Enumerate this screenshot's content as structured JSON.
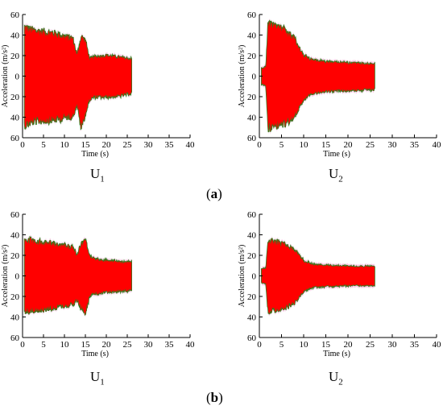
{
  "charts": [
    {
      "id": "a-u1",
      "type": "area",
      "xlabel": "Time (s)",
      "ylabel": "Acceleration (m/s²)",
      "xlim": [
        0,
        40
      ],
      "ylim": [
        -60,
        60
      ],
      "xticks": [
        0,
        5,
        10,
        15,
        20,
        25,
        30,
        35,
        40
      ],
      "yticks": [
        60,
        40,
        20,
        0,
        20,
        40,
        60
      ],
      "caption_main": "U",
      "caption_sub": "1",
      "fill_color": "#ff0000",
      "edge_color": "#2e7d1e",
      "envelope": {
        "t": [
          0.5,
          1.5,
          3,
          5,
          8,
          10,
          12,
          13,
          14,
          15,
          16,
          17,
          20,
          23,
          26
        ],
        "upper": [
          52,
          50,
          48,
          47,
          45,
          42,
          40,
          22,
          42,
          38,
          18,
          20,
          22,
          20,
          18
        ],
        "lower": [
          -52,
          -50,
          -48,
          -47,
          -46,
          -44,
          -42,
          -30,
          -55,
          -40,
          -25,
          -22,
          -22,
          -21,
          -18
        ]
      }
    },
    {
      "id": "a-u2",
      "type": "area",
      "xlabel": "Time (s)",
      "ylabel": "Acceleration (m/s²)",
      "xlim": [
        0,
        40
      ],
      "ylim": [
        -60,
        60
      ],
      "xticks": [
        0,
        5,
        10,
        15,
        20,
        25,
        30,
        35,
        40
      ],
      "yticks": [
        60,
        40,
        20,
        0,
        20,
        40,
        60
      ],
      "caption_main": "U",
      "caption_sub": "2",
      "fill_color": "#ff0000",
      "edge_color": "#2e7d1e",
      "envelope": {
        "t": [
          0.5,
          1.5,
          2,
          4,
          6,
          8,
          9,
          10,
          12,
          15,
          20,
          26
        ],
        "upper": [
          8,
          10,
          55,
          52,
          48,
          40,
          30,
          22,
          17,
          15,
          14,
          13
        ],
        "lower": [
          -8,
          -10,
          -55,
          -52,
          -50,
          -42,
          -32,
          -25,
          -18,
          -16,
          -15,
          -14
        ]
      }
    },
    {
      "id": "b-u1",
      "type": "area",
      "xlabel": "Time (s)",
      "ylabel": "Acceleration (m/s²)",
      "xlim": [
        0,
        40
      ],
      "ylim": [
        -60,
        60
      ],
      "xticks": [
        0,
        5,
        10,
        15,
        20,
        25,
        30,
        35,
        40
      ],
      "yticks": [
        60,
        40,
        20,
        0,
        20,
        40,
        60
      ],
      "caption_main": "U",
      "caption_sub": "1",
      "fill_color": "#ff0000",
      "edge_color": "#2e7d1e",
      "envelope": {
        "t": [
          0.5,
          1.5,
          4,
          8,
          12,
          13,
          14,
          15,
          16,
          17,
          20,
          23,
          26
        ],
        "upper": [
          38,
          38,
          36,
          34,
          30,
          22,
          34,
          38,
          20,
          18,
          16,
          15,
          14
        ],
        "lower": [
          -38,
          -38,
          -36,
          -34,
          -30,
          -26,
          -34,
          -38,
          -22,
          -19,
          -17,
          -16,
          -15
        ]
      }
    },
    {
      "id": "b-u2",
      "type": "area",
      "xlabel": "Time (s)",
      "ylabel": "Acceleration (m/s²)",
      "xlim": [
        0,
        40
      ],
      "ylim": [
        -60,
        60
      ],
      "xticks": [
        0,
        5,
        10,
        15,
        20,
        25,
        30,
        35,
        40
      ],
      "yticks": [
        60,
        40,
        20,
        0,
        20,
        40,
        60
      ],
      "caption_main": "U",
      "caption_sub": "2",
      "fill_color": "#ff0000",
      "edge_color": "#2e7d1e",
      "envelope": {
        "t": [
          0.5,
          1.5,
          2,
          4,
          6,
          8,
          9,
          10,
          12,
          15,
          20,
          26
        ],
        "upper": [
          7,
          8,
          38,
          36,
          33,
          28,
          22,
          16,
          12,
          11,
          10,
          10
        ],
        "lower": [
          -7,
          -8,
          -38,
          -36,
          -33,
          -28,
          -22,
          -16,
          -12,
          -11,
          -10,
          -10
        ]
      }
    }
  ],
  "panel_labels": {
    "a": "a",
    "b": "b"
  }
}
